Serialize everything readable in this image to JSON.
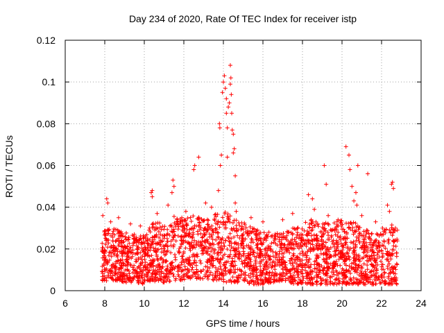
{
  "chart_data": {
    "type": "scatter",
    "title": "Day 234 of 2020, Rate Of TEC Index for receiver istp",
    "xlabel": "GPS time / hours",
    "ylabel": "ROTI / TECUs",
    "xlim": [
      6,
      24
    ],
    "ylim": [
      0,
      0.12
    ],
    "xticks": [
      6,
      8,
      10,
      12,
      14,
      16,
      18,
      20,
      22,
      24
    ],
    "xtick_labels": [
      "6",
      "8",
      "10",
      "12",
      "14",
      "16",
      "18",
      "20",
      "22",
      "24"
    ],
    "yticks": [
      0,
      0.02,
      0.04,
      0.06,
      0.08,
      0.1,
      0.12
    ],
    "ytick_labels": [
      "0",
      "0.02",
      "0.04",
      "0.06",
      "0.08",
      "0.1",
      "0.12"
    ],
    "grid": true,
    "marker": "+",
    "color": "#ff0000",
    "series": [
      {
        "name": "ROTI",
        "points": [
          [
            7.9,
            0.036
          ],
          [
            8.1,
            0.044
          ],
          [
            8.15,
            0.042
          ],
          [
            8.3,
            0.033
          ],
          [
            8.7,
            0.035
          ],
          [
            9.3,
            0.032
          ],
          [
            9.8,
            0.031
          ],
          [
            10.35,
            0.047
          ],
          [
            10.4,
            0.048
          ],
          [
            10.4,
            0.045
          ],
          [
            10.65,
            0.037
          ],
          [
            11.2,
            0.041
          ],
          [
            11.4,
            0.047
          ],
          [
            11.45,
            0.053
          ],
          [
            11.5,
            0.05
          ],
          [
            11.9,
            0.035
          ],
          [
            12.1,
            0.038
          ],
          [
            12.5,
            0.058
          ],
          [
            12.55,
            0.06
          ],
          [
            12.75,
            0.064
          ],
          [
            13.1,
            0.042
          ],
          [
            13.4,
            0.04
          ],
          [
            13.75,
            0.048
          ],
          [
            13.8,
            0.08
          ],
          [
            13.82,
            0.078
          ],
          [
            13.85,
            0.06
          ],
          [
            13.9,
            0.065
          ],
          [
            13.95,
            0.095
          ],
          [
            14.0,
            0.1
          ],
          [
            14.05,
            0.103
          ],
          [
            14.1,
            0.097
          ],
          [
            14.15,
            0.085
          ],
          [
            14.15,
            0.092
          ],
          [
            14.2,
            0.078
          ],
          [
            14.2,
            0.064
          ],
          [
            14.25,
            0.088
          ],
          [
            14.3,
            0.09
          ],
          [
            14.35,
            0.099
          ],
          [
            14.35,
            0.108
          ],
          [
            14.38,
            0.102
          ],
          [
            14.4,
            0.094
          ],
          [
            14.42,
            0.085
          ],
          [
            14.45,
            0.077
          ],
          [
            14.5,
            0.075
          ],
          [
            14.5,
            0.066
          ],
          [
            14.55,
            0.068
          ],
          [
            14.6,
            0.055
          ],
          [
            14.6,
            0.042
          ],
          [
            14.65,
            0.038
          ],
          [
            15.4,
            0.035
          ],
          [
            16.0,
            0.033
          ],
          [
            16.3,
            0.028
          ],
          [
            17.0,
            0.034
          ],
          [
            17.5,
            0.037
          ],
          [
            18.3,
            0.046
          ],
          [
            18.5,
            0.044
          ],
          [
            18.6,
            0.039
          ],
          [
            19.1,
            0.06
          ],
          [
            19.2,
            0.051
          ],
          [
            19.3,
            0.036
          ],
          [
            19.8,
            0.034
          ],
          [
            20.2,
            0.069
          ],
          [
            20.35,
            0.065
          ],
          [
            20.4,
            0.058
          ],
          [
            20.5,
            0.05
          ],
          [
            20.6,
            0.043
          ],
          [
            20.7,
            0.047
          ],
          [
            20.75,
            0.041
          ],
          [
            20.8,
            0.06
          ],
          [
            21.0,
            0.036
          ],
          [
            21.3,
            0.056
          ],
          [
            21.7,
            0.033
          ],
          [
            22.05,
            0.03
          ],
          [
            22.3,
            0.041
          ],
          [
            22.4,
            0.038
          ],
          [
            22.5,
            0.051
          ],
          [
            22.55,
            0.052
          ],
          [
            22.6,
            0.049
          ],
          [
            22.7,
            0.03
          ],
          [
            22.8,
            0.029
          ]
        ]
      }
    ],
    "bulk_envelope": {
      "description": "dense cloud of ROTI samples per hour: [hour, min, max]",
      "hours": [
        [
          7.85,
          0.005,
          0.022
        ],
        [
          8.0,
          0.004,
          0.03
        ],
        [
          8.5,
          0.005,
          0.03
        ],
        [
          9.0,
          0.004,
          0.028
        ],
        [
          9.5,
          0.004,
          0.027
        ],
        [
          10.0,
          0.003,
          0.028
        ],
        [
          10.5,
          0.004,
          0.033
        ],
        [
          11.0,
          0.004,
          0.032
        ],
        [
          11.5,
          0.005,
          0.036
        ],
        [
          12.0,
          0.005,
          0.034
        ],
        [
          12.5,
          0.006,
          0.037
        ],
        [
          13.0,
          0.005,
          0.035
        ],
        [
          13.5,
          0.005,
          0.036
        ],
        [
          14.0,
          0.004,
          0.04
        ],
        [
          14.5,
          0.004,
          0.035
        ],
        [
          15.0,
          0.004,
          0.033
        ],
        [
          15.5,
          0.003,
          0.03
        ],
        [
          16.0,
          0.003,
          0.028
        ],
        [
          16.5,
          0.004,
          0.027
        ],
        [
          17.0,
          0.004,
          0.028
        ],
        [
          17.5,
          0.003,
          0.03
        ],
        [
          18.0,
          0.003,
          0.032
        ],
        [
          18.5,
          0.003,
          0.035
        ],
        [
          19.0,
          0.003,
          0.033
        ],
        [
          19.5,
          0.003,
          0.032
        ],
        [
          20.0,
          0.003,
          0.035
        ],
        [
          20.5,
          0.003,
          0.034
        ],
        [
          21.0,
          0.003,
          0.03
        ],
        [
          21.5,
          0.003,
          0.028
        ],
        [
          22.0,
          0.003,
          0.028
        ],
        [
          22.5,
          0.003,
          0.032
        ],
        [
          22.8,
          0.003,
          0.028
        ]
      ],
      "approx_count": 2600
    }
  }
}
